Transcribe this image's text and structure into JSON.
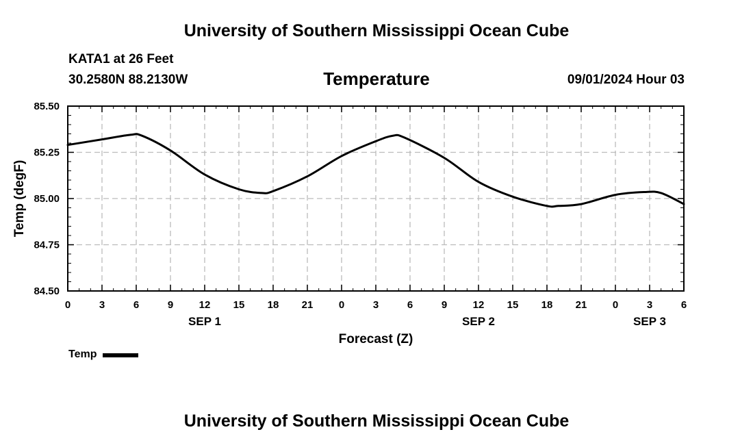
{
  "header": {
    "title": "University of Southern Mississippi Ocean Cube",
    "station": "KATA1 at 26 Feet",
    "coordinates": "30.2580N  88.2130W",
    "chart_title": "Temperature",
    "datetime": "09/01/2024 Hour 03"
  },
  "footer": {
    "title": "University of Southern Mississippi Ocean Cube"
  },
  "legend": {
    "label": "Temp"
  },
  "chart_data": {
    "type": "line",
    "title": "Temperature",
    "xlabel": "Forecast (Z)",
    "ylabel": "Temp (degF)",
    "xlim": [
      0,
      54
    ],
    "ylim": [
      84.5,
      85.5
    ],
    "grid": true,
    "x_ticks": [
      0,
      3,
      6,
      9,
      12,
      15,
      18,
      21,
      24,
      27,
      30,
      33,
      36,
      39,
      42,
      45,
      48,
      51,
      54
    ],
    "x_tick_labels": [
      "0",
      "3",
      "6",
      "9",
      "12",
      "15",
      "18",
      "21",
      "0",
      "3",
      "6",
      "9",
      "12",
      "15",
      "18",
      "21",
      "0",
      "3",
      "6"
    ],
    "y_ticks": [
      84.5,
      84.75,
      85.0,
      85.25,
      85.5
    ],
    "y_tick_labels": [
      "84.50",
      "84.75",
      "85.00",
      "85.25",
      "85.50"
    ],
    "date_labels": [
      {
        "x": 12,
        "label": "SEP 1"
      },
      {
        "x": 36,
        "label": "SEP 2"
      },
      {
        "x": 51,
        "label": "SEP 3"
      }
    ],
    "series": [
      {
        "name": "Temp",
        "color": "#000000",
        "x": [
          0,
          3,
          5.5,
          6.5,
          9,
          12,
          15,
          17,
          18,
          21,
          24,
          27,
          28.5,
          29.5,
          33,
          36,
          39,
          42,
          43,
          45,
          48,
          50.5,
          52,
          54
        ],
        "values": [
          85.29,
          85.32,
          85.345,
          85.34,
          85.26,
          85.13,
          85.05,
          85.03,
          85.04,
          85.12,
          85.23,
          85.31,
          85.34,
          85.33,
          85.22,
          85.09,
          85.01,
          84.96,
          84.96,
          84.97,
          85.02,
          85.035,
          85.03,
          84.97
        ]
      }
    ]
  }
}
